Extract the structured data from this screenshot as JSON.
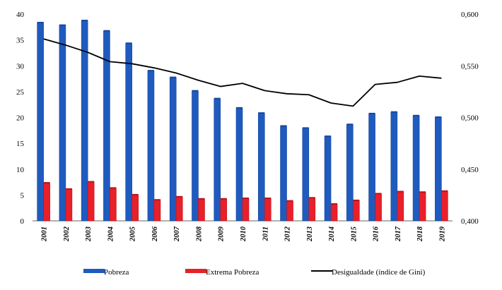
{
  "chart_data": {
    "type": "bar",
    "categories": [
      "2001",
      "2002",
      "2003",
      "2004",
      "2005",
      "2006",
      "2007",
      "2008",
      "2009",
      "2010",
      "2011",
      "2012",
      "2013",
      "2014",
      "2015",
      "2016",
      "2017",
      "2018",
      "2019"
    ],
    "series": [
      {
        "name": "Pobreza",
        "type": "bar",
        "axis": "left",
        "color": "#1f5bbf",
        "values": [
          38.3,
          37.8,
          38.7,
          36.7,
          34.3,
          29.0,
          27.7,
          25.1,
          23.6,
          21.8,
          20.8,
          18.3,
          17.9,
          16.3,
          18.6,
          20.7,
          21.0,
          20.3,
          20.0
        ]
      },
      {
        "name": "Extrema Pobreza",
        "type": "bar",
        "axis": "left",
        "color": "#e8202a",
        "values": [
          7.3,
          6.1,
          7.5,
          6.3,
          5.0,
          4.0,
          4.6,
          4.2,
          4.2,
          4.3,
          4.3,
          3.8,
          4.4,
          3.2,
          3.9,
          5.2,
          5.6,
          5.5,
          5.7
        ]
      },
      {
        "name": "Desigualdade (índice de Gini)",
        "type": "line",
        "axis": "right",
        "color": "#000000",
        "values": [
          0.576,
          0.57,
          0.563,
          0.554,
          0.552,
          0.548,
          0.543,
          0.536,
          0.53,
          0.533,
          0.526,
          0.523,
          0.522,
          0.514,
          0.511,
          0.532,
          0.534,
          0.54,
          0.538
        ]
      }
    ],
    "left_axis": {
      "ylim": [
        0,
        40
      ],
      "ticks": [
        "0",
        "5",
        "10",
        "15",
        "20",
        "25",
        "30",
        "35",
        "40"
      ]
    },
    "right_axis": {
      "ylim": [
        0.4,
        0.6
      ],
      "ticks": [
        "0,400",
        "0,450",
        "0,500",
        "0,550",
        "0,600"
      ]
    },
    "grid": false,
    "legend_position": "bottom"
  }
}
